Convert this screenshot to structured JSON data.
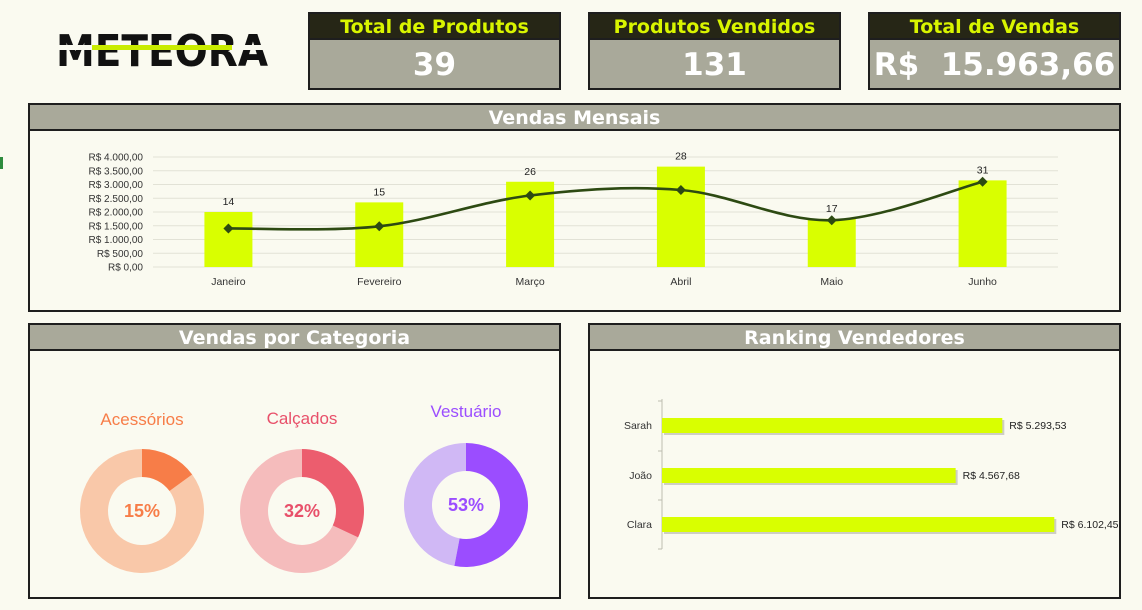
{
  "logo": {
    "text": "METEORA"
  },
  "kpis": [
    {
      "title": "Total de Produtos",
      "value": "39"
    },
    {
      "title": "Produtos Vendidos",
      "value": "131"
    },
    {
      "title": "Total de Vendas",
      "value": "R$  15.963,66"
    }
  ],
  "sections": {
    "monthly": "Vendas Mensais",
    "category": "Vendas por Categoria",
    "ranking": "Ranking Vendedores"
  },
  "colors": {
    "bar": "#d9ff00",
    "line": "#2d4a12",
    "header_dark": "#262616",
    "header_gray": "#a9a99a",
    "accent_text": "#d9f500"
  },
  "chart_data": [
    {
      "type": "bar",
      "title": "Vendas Mensais",
      "categories": [
        "Janeiro",
        "Fevereiro",
        "Março",
        "Abril",
        "Maio",
        "Junho"
      ],
      "series": [
        {
          "type": "bar",
          "values": [
            2000,
            2350,
            3100,
            3650,
            1750,
            3150
          ]
        },
        {
          "type": "line",
          "smooth": true,
          "marker": "diamond",
          "values": [
            1400,
            1480,
            2600,
            2800,
            1700,
            3100
          ],
          "data_labels": [
            "14",
            "15",
            "26",
            "28",
            "17",
            "31"
          ]
        }
      ],
      "ylim": [
        0,
        4000
      ],
      "y_ticks": [
        {
          "v": 0,
          "label": "R$ 0,00"
        },
        {
          "v": 500,
          "label": "R$ 500,00"
        },
        {
          "v": 1000,
          "label": "R$ 1.000,00"
        },
        {
          "v": 1500,
          "label": "R$ 1.500,00"
        },
        {
          "v": 2000,
          "label": "R$ 2.000,00"
        },
        {
          "v": 2500,
          "label": "R$ 2.500,00"
        },
        {
          "v": 3000,
          "label": "R$ 3.000,00"
        },
        {
          "v": 3500,
          "label": "R$ 3.500,00"
        },
        {
          "v": 4000,
          "label": "R$ 4.000,00"
        }
      ],
      "grid": true,
      "legend": "none"
    },
    {
      "type": "pie",
      "title": "Vendas por Categoria",
      "donuts": [
        {
          "label": "Acessórios",
          "value": 15,
          "value_label": "15%",
          "color": "#f77d48",
          "rest_color": "#f9c8a9",
          "label_color": "#f77d48"
        },
        {
          "label": "Calçados",
          "value": 32,
          "value_label": "32%",
          "color": "#ec5d6e",
          "rest_color": "#f5bcbc",
          "label_color": "#e8506a"
        },
        {
          "label": "Vestuário",
          "value": 53,
          "value_label": "53%",
          "color": "#9b4dff",
          "rest_color": "#d0b8f5",
          "label_color": "#9b4dff"
        }
      ]
    },
    {
      "type": "bar",
      "orientation": "horizontal",
      "title": "Ranking Vendedores",
      "categories": [
        "Sarah",
        "João",
        "Clara"
      ],
      "values": [
        5293.53,
        4567.68,
        6102.45
      ],
      "value_labels": [
        "R$ 5.293,53",
        "R$ 4.567,68",
        "R$ 6.102,45"
      ],
      "xlim": [
        0,
        7000
      ],
      "grid": false,
      "legend": "none"
    }
  ]
}
